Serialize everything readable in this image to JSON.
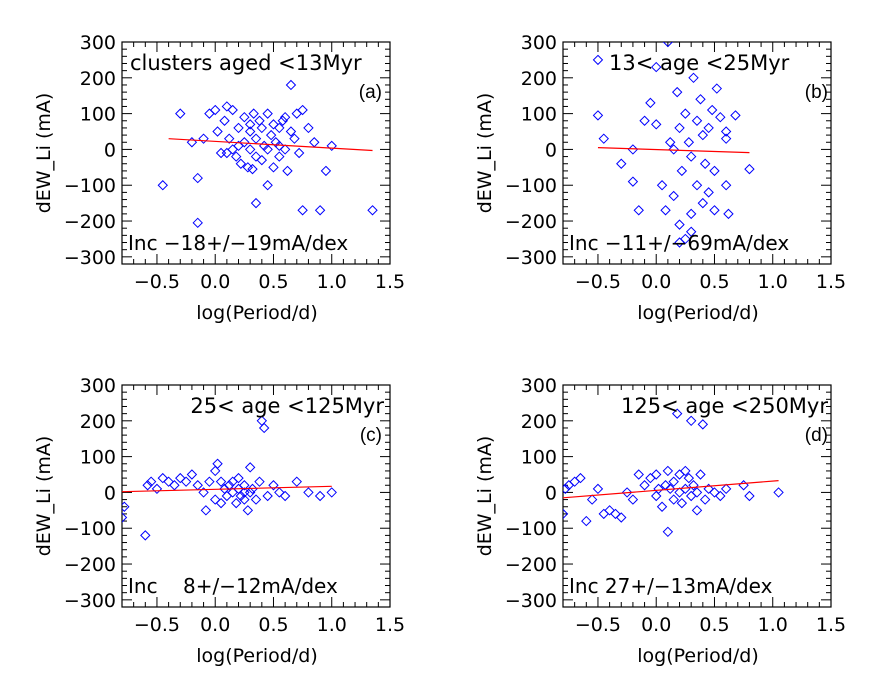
{
  "colors": {
    "points": "#0000ff",
    "fit_line": "#ff0000",
    "axes": "#000000",
    "background": "#ffffff"
  },
  "chart_data": [
    {
      "type": "scatter",
      "panel_label": "(a)",
      "title": "clusters aged <13Myr",
      "xlabel": "log(Period/d)",
      "ylabel": "dEW_Li (mA)",
      "xlim": [
        -0.8,
        1.5
      ],
      "ylim": [
        -320,
        300
      ],
      "xticks": [
        -0.5,
        0.0,
        0.5,
        1.0,
        1.5
      ],
      "xtick_labels": [
        "−0.5",
        "0.0",
        "0.5",
        "1.0",
        "1.5"
      ],
      "yticks": [
        -300,
        -200,
        -100,
        0,
        100,
        200,
        300
      ],
      "ytick_labels": [
        "−300",
        "−200",
        "−100",
        "0",
        "100",
        "200",
        "300"
      ],
      "fit_label": "Inc  −18+/−19mA/dex",
      "fit_line": {
        "x": [
          -0.4,
          1.35
        ],
        "y": [
          30,
          -3
        ]
      },
      "marker": "diamond",
      "points": [
        [
          -0.45,
          -100
        ],
        [
          -0.3,
          100
        ],
        [
          -0.2,
          20
        ],
        [
          -0.15,
          -80
        ],
        [
          -0.1,
          30
        ],
        [
          -0.05,
          100
        ],
        [
          0.0,
          110
        ],
        [
          0.02,
          50
        ],
        [
          0.05,
          -10
        ],
        [
          0.08,
          80
        ],
        [
          0.1,
          120
        ],
        [
          0.12,
          30
        ],
        [
          0.15,
          0
        ],
        [
          0.15,
          110
        ],
        [
          0.18,
          -20
        ],
        [
          0.2,
          60
        ],
        [
          0.2,
          10
        ],
        [
          0.22,
          -40
        ],
        [
          0.25,
          90
        ],
        [
          0.25,
          20
        ],
        [
          0.28,
          -50
        ],
        [
          0.3,
          50
        ],
        [
          0.3,
          0
        ],
        [
          0.32,
          -55
        ],
        [
          0.33,
          100
        ],
        [
          0.35,
          30
        ],
        [
          0.35,
          -20
        ],
        [
          0.38,
          80
        ],
        [
          0.4,
          60
        ],
        [
          0.4,
          -30
        ],
        [
          0.42,
          10
        ],
        [
          0.45,
          100
        ],
        [
          0.45,
          -100
        ],
        [
          0.48,
          40
        ],
        [
          0.5,
          70
        ],
        [
          0.5,
          -50
        ],
        [
          0.52,
          20
        ],
        [
          0.55,
          60
        ],
        [
          0.55,
          -20
        ],
        [
          0.58,
          80
        ],
        [
          0.6,
          90
        ],
        [
          0.6,
          0
        ],
        [
          0.62,
          -60
        ],
        [
          0.65,
          50
        ],
        [
          0.65,
          180
        ],
        [
          0.68,
          30
        ],
        [
          0.7,
          100
        ],
        [
          0.72,
          -10
        ],
        [
          0.75,
          110
        ],
        [
          0.75,
          -170
        ],
        [
          0.8,
          60
        ],
        [
          0.85,
          20
        ],
        [
          0.95,
          -60
        ],
        [
          1.0,
          10
        ],
        [
          0.35,
          -150
        ],
        [
          -0.15,
          -205
        ],
        [
          0.1,
          -10
        ],
        [
          0.3,
          70
        ],
        [
          0.45,
          0
        ],
        [
          0.55,
          10
        ],
        [
          1.35,
          -170
        ],
        [
          0.9,
          -170
        ]
      ]
    },
    {
      "type": "scatter",
      "panel_label": "(b)",
      "title": "13< age <25Myr",
      "xlabel": "log(Period/d)",
      "ylabel": "dEW_Li (mA)",
      "xlim": [
        -0.8,
        1.5
      ],
      "ylim": [
        -320,
        300
      ],
      "xticks": [
        -0.5,
        0.0,
        0.5,
        1.0,
        1.5
      ],
      "xtick_labels": [
        "−0.5",
        "0.0",
        "0.5",
        "1.0",
        "1.5"
      ],
      "yticks": [
        -300,
        -200,
        -100,
        0,
        100,
        200,
        300
      ],
      "ytick_labels": [
        "−300",
        "−200",
        "−100",
        "0",
        "100",
        "200",
        "300"
      ],
      "fit_label": "Inc  −11+/−69mA/dex",
      "fit_line": {
        "x": [
          -0.5,
          0.8
        ],
        "y": [
          5,
          -9
        ]
      },
      "marker": "diamond",
      "points": [
        [
          -0.5,
          250
        ],
        [
          -0.5,
          95
        ],
        [
          -0.45,
          30
        ],
        [
          -0.3,
          -40
        ],
        [
          -0.2,
          0
        ],
        [
          -0.2,
          -90
        ],
        [
          -0.15,
          -170
        ],
        [
          -0.1,
          80
        ],
        [
          -0.05,
          130
        ],
        [
          0.0,
          230
        ],
        [
          0.0,
          70
        ],
        [
          0.05,
          -100
        ],
        [
          0.08,
          -170
        ],
        [
          0.1,
          300
        ],
        [
          0.12,
          20
        ],
        [
          0.15,
          -130
        ],
        [
          0.18,
          160
        ],
        [
          0.2,
          60
        ],
        [
          0.2,
          -210
        ],
        [
          0.22,
          -60
        ],
        [
          0.25,
          100
        ],
        [
          0.25,
          -250
        ],
        [
          0.28,
          20
        ],
        [
          0.3,
          -20
        ],
        [
          0.3,
          -180
        ],
        [
          0.32,
          200
        ],
        [
          0.35,
          80
        ],
        [
          0.35,
          -100
        ],
        [
          0.38,
          140
        ],
        [
          0.4,
          40
        ],
        [
          0.4,
          -150
        ],
        [
          0.42,
          -40
        ],
        [
          0.45,
          60
        ],
        [
          0.48,
          110
        ],
        [
          0.5,
          -60
        ],
        [
          0.5,
          -170
        ],
        [
          0.52,
          170
        ],
        [
          0.55,
          90
        ],
        [
          0.6,
          50
        ],
        [
          0.6,
          -100
        ],
        [
          0.62,
          -180
        ],
        [
          0.68,
          95
        ],
        [
          0.8,
          -55
        ],
        [
          0.2,
          -260
        ],
        [
          0.3,
          -230
        ],
        [
          0.15,
          0
        ],
        [
          0.6,
          30
        ],
        [
          0.45,
          -120
        ]
      ]
    },
    {
      "type": "scatter",
      "panel_label": "(c)",
      "title": "25< age <125Myr",
      "xlabel": "log(Period/d)",
      "ylabel": "dEW_Li (mA)",
      "xlim": [
        -0.8,
        1.5
      ],
      "ylim": [
        -320,
        300
      ],
      "xticks": [
        -0.5,
        0.0,
        0.5,
        1.0,
        1.5
      ],
      "xtick_labels": [
        "−0.5",
        "0.0",
        "0.5",
        "1.0",
        "1.5"
      ],
      "yticks": [
        -300,
        -200,
        -100,
        0,
        100,
        200,
        300
      ],
      "ytick_labels": [
        "−300",
        "−200",
        "−100",
        "0",
        "100",
        "200",
        "300"
      ],
      "fit_label": "Inc    8+/−12mA/dex",
      "fit_line": {
        "x": [
          -0.8,
          1.0
        ],
        "y": [
          2,
          17
        ]
      },
      "marker": "diamond",
      "points": [
        [
          -0.8,
          -70
        ],
        [
          -0.78,
          -40
        ],
        [
          -0.6,
          -120
        ],
        [
          -0.58,
          20
        ],
        [
          -0.55,
          30
        ],
        [
          -0.5,
          10
        ],
        [
          -0.45,
          40
        ],
        [
          -0.4,
          30
        ],
        [
          -0.35,
          20
        ],
        [
          -0.3,
          40
        ],
        [
          -0.25,
          30
        ],
        [
          -0.2,
          50
        ],
        [
          -0.15,
          20
        ],
        [
          -0.1,
          0
        ],
        [
          -0.08,
          -50
        ],
        [
          -0.05,
          30
        ],
        [
          0.0,
          60
        ],
        [
          0.0,
          -20
        ],
        [
          0.02,
          80
        ],
        [
          0.05,
          30
        ],
        [
          0.08,
          10
        ],
        [
          0.1,
          -10
        ],
        [
          0.12,
          20
        ],
        [
          0.15,
          0
        ],
        [
          0.18,
          -30
        ],
        [
          0.2,
          10
        ],
        [
          0.2,
          40
        ],
        [
          0.22,
          -10
        ],
        [
          0.25,
          0
        ],
        [
          0.25,
          20
        ],
        [
          0.28,
          -50
        ],
        [
          0.3,
          70
        ],
        [
          0.3,
          0
        ],
        [
          0.32,
          10
        ],
        [
          0.35,
          -20
        ],
        [
          0.38,
          30
        ],
        [
          0.4,
          200
        ],
        [
          0.42,
          180
        ],
        [
          0.45,
          -10
        ],
        [
          0.5,
          20
        ],
        [
          0.55,
          0
        ],
        [
          0.6,
          -10
        ],
        [
          0.7,
          30
        ],
        [
          0.8,
          0
        ],
        [
          0.9,
          -10
        ],
        [
          1.0,
          0
        ],
        [
          0.05,
          -30
        ],
        [
          0.15,
          30
        ],
        [
          0.25,
          -20
        ]
      ]
    },
    {
      "type": "scatter",
      "panel_label": "(d)",
      "title": "125< age <250Myr",
      "xlabel": "log(Period/d)",
      "ylabel": "dEW_Li (mA)",
      "xlim": [
        -0.8,
        1.5
      ],
      "ylim": [
        -320,
        300
      ],
      "xticks": [
        -0.5,
        0.0,
        0.5,
        1.0,
        1.5
      ],
      "xtick_labels": [
        "−0.5",
        "0.0",
        "0.5",
        "1.0",
        "1.5"
      ],
      "yticks": [
        -300,
        -200,
        -100,
        0,
        100,
        200,
        300
      ],
      "ytick_labels": [
        "−300",
        "−200",
        "−100",
        "0",
        "100",
        "200",
        "300"
      ],
      "fit_label": "Inc  27+/−13mA/dex",
      "fit_line": {
        "x": [
          -0.8,
          1.05
        ],
        "y": [
          -15,
          33
        ]
      },
      "marker": "diamond",
      "points": [
        [
          -0.8,
          -60
        ],
        [
          -0.78,
          10
        ],
        [
          -0.75,
          20
        ],
        [
          -0.7,
          30
        ],
        [
          -0.65,
          40
        ],
        [
          -0.6,
          -80
        ],
        [
          -0.55,
          -20
        ],
        [
          -0.5,
          10
        ],
        [
          -0.45,
          -60
        ],
        [
          -0.4,
          -50
        ],
        [
          -0.35,
          -60
        ],
        [
          -0.3,
          -70
        ],
        [
          -0.25,
          0
        ],
        [
          -0.2,
          -20
        ],
        [
          -0.15,
          50
        ],
        [
          -0.1,
          20
        ],
        [
          -0.05,
          40
        ],
        [
          0.0,
          50
        ],
        [
          0.0,
          -10
        ],
        [
          0.02,
          10
        ],
        [
          0.05,
          -40
        ],
        [
          0.08,
          20
        ],
        [
          0.1,
          60
        ],
        [
          0.1,
          -110
        ],
        [
          0.12,
          10
        ],
        [
          0.15,
          30
        ],
        [
          0.18,
          220
        ],
        [
          0.2,
          0
        ],
        [
          0.2,
          50
        ],
        [
          0.22,
          -30
        ],
        [
          0.25,
          10
        ],
        [
          0.28,
          40
        ],
        [
          0.3,
          200
        ],
        [
          0.3,
          -10
        ],
        [
          0.32,
          20
        ],
        [
          0.35,
          0
        ],
        [
          0.38,
          50
        ],
        [
          0.4,
          190
        ],
        [
          0.42,
          -20
        ],
        [
          0.45,
          10
        ],
        [
          0.5,
          0
        ],
        [
          0.55,
          -10
        ],
        [
          0.6,
          10
        ],
        [
          0.75,
          20
        ],
        [
          0.8,
          -10
        ],
        [
          1.05,
          0
        ],
        [
          0.25,
          60
        ],
        [
          0.35,
          -50
        ],
        [
          0.15,
          -20
        ]
      ]
    }
  ]
}
